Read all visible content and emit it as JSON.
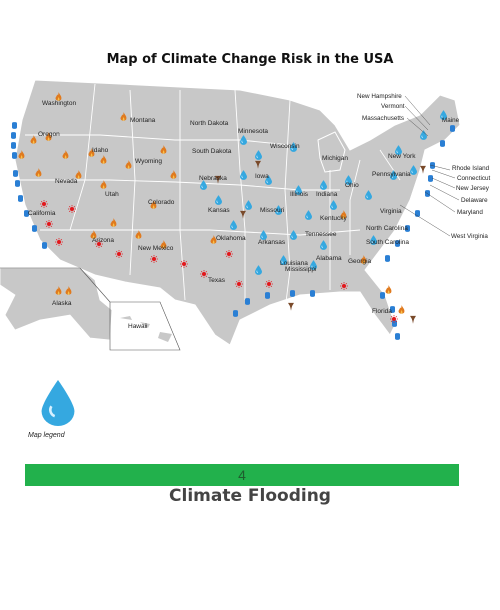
{
  "title": "Map of Climate Change Risk in the USA",
  "states": [
    {
      "label": "Washington"
    },
    {
      "label": "Montana"
    },
    {
      "label": "North Dakota"
    },
    {
      "label": "Minnesota"
    },
    {
      "label": "Wisconsin"
    },
    {
      "label": "Michigan"
    },
    {
      "label": "Oregon"
    },
    {
      "label": "Idaho"
    },
    {
      "label": "Wyoming"
    },
    {
      "label": "South Dakota"
    },
    {
      "label": "Nebraska"
    },
    {
      "label": "Iowa"
    },
    {
      "label": "Illinois"
    },
    {
      "label": "Indiana"
    },
    {
      "label": "Ohio"
    },
    {
      "label": "Pennsylvania"
    },
    {
      "label": "New York"
    },
    {
      "label": "Nevada"
    },
    {
      "label": "Utah"
    },
    {
      "label": "Colorado"
    },
    {
      "label": "Kansas"
    },
    {
      "label": "Missouri"
    },
    {
      "label": "Kentucky"
    },
    {
      "label": "Virginia"
    },
    {
      "label": "California"
    },
    {
      "label": "Arizona"
    },
    {
      "label": "New Mexico"
    },
    {
      "label": "Oklahoma"
    },
    {
      "label": "Arkansas"
    },
    {
      "label": "Tennessee"
    },
    {
      "label": "North Carolina"
    },
    {
      "label": "South Carolina"
    },
    {
      "label": "Texas"
    },
    {
      "label": "Louisiana"
    },
    {
      "label": "Mississippi"
    },
    {
      "label": "Alabama"
    },
    {
      "label": "Georgia"
    },
    {
      "label": "Florida"
    },
    {
      "label": "Alaska"
    },
    {
      "label": "Hawaii"
    }
  ],
  "callouts": [
    {
      "label": "New Hampshire"
    },
    {
      "label": "Vermont"
    },
    {
      "label": "Massachusetts"
    },
    {
      "label": "Maine"
    },
    {
      "label": "Rhode Island"
    },
    {
      "label": "Connecticut"
    },
    {
      "label": "New Jersey"
    },
    {
      "label": "Delaware"
    },
    {
      "label": "Maryland"
    },
    {
      "label": "West Virginia"
    }
  ],
  "legend": {
    "icon": "water-drop-icon",
    "caption": "Map legend"
  },
  "bar": {
    "value": "4",
    "color": "#22b14c"
  },
  "subtitle": "Climate Flooding",
  "colors": {
    "land": "#c8c8c8",
    "border": "#ffffff",
    "drop": "#35a8e0",
    "fire": "#e07a1e",
    "heat": "#e3161b",
    "coast": "#2a7fd4"
  }
}
